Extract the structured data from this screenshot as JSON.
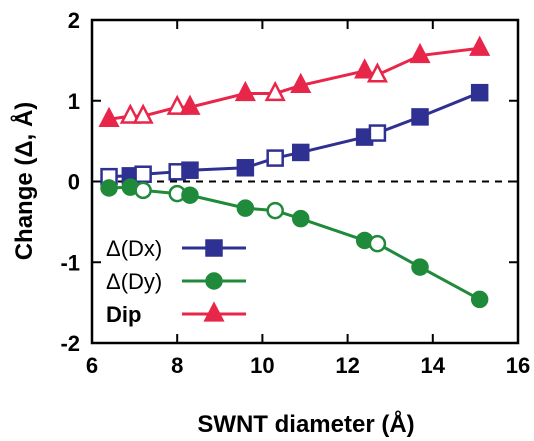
{
  "chart_data": {
    "type": "line",
    "xlabel": "SWNT diameter (Å)",
    "ylabel": "Change (Δ, Å)",
    "xlim": [
      6,
      16
    ],
    "ylim": [
      -2,
      2
    ],
    "xticks": [
      6,
      8,
      10,
      12,
      14,
      16
    ],
    "yticks": [
      -2,
      -1,
      0,
      1,
      2
    ],
    "xtick_labels": [
      "6",
      "8",
      "10",
      "12",
      "14",
      "16"
    ],
    "ytick_labels": [
      "-2",
      "-1",
      "0",
      "1",
      "2"
    ],
    "zero_line": "dashed",
    "grid": false,
    "legend_position": "bottom-left",
    "series": [
      {
        "name": "Δ(Dx)",
        "color": "#2e3192",
        "marker": "square",
        "x": [
          6.4,
          6.9,
          7.2,
          8.0,
          8.3,
          9.6,
          10.3,
          10.9,
          12.4,
          12.7,
          13.7,
          15.1
        ],
        "y": [
          0.06,
          0.07,
          0.09,
          0.12,
          0.14,
          0.17,
          0.29,
          0.36,
          0.55,
          0.6,
          0.8,
          1.1
        ],
        "hollow": [
          true,
          false,
          true,
          true,
          false,
          false,
          true,
          false,
          false,
          true,
          false,
          false
        ]
      },
      {
        "name": "Δ(Dy)",
        "color": "#1e8a3a",
        "marker": "circle",
        "x": [
          6.4,
          6.9,
          7.2,
          8.0,
          8.3,
          9.6,
          10.3,
          10.9,
          12.4,
          12.7,
          13.7,
          15.1
        ],
        "y": [
          -0.08,
          -0.07,
          -0.11,
          -0.15,
          -0.17,
          -0.33,
          -0.36,
          -0.46,
          -0.73,
          -0.77,
          -1.06,
          -1.46
        ],
        "hollow": [
          false,
          false,
          true,
          true,
          false,
          false,
          true,
          false,
          false,
          true,
          false,
          false
        ]
      },
      {
        "name": "Dip",
        "color": "#e8264a",
        "marker": "triangle",
        "x": [
          6.4,
          6.9,
          7.2,
          8.0,
          8.3,
          9.6,
          10.3,
          10.9,
          12.4,
          12.7,
          13.7,
          15.1
        ],
        "y": [
          0.77,
          0.81,
          0.81,
          0.92,
          0.92,
          1.09,
          1.09,
          1.19,
          1.37,
          1.32,
          1.56,
          1.65
        ],
        "hollow": [
          false,
          true,
          true,
          true,
          false,
          false,
          true,
          false,
          false,
          true,
          false,
          false
        ]
      }
    ]
  }
}
